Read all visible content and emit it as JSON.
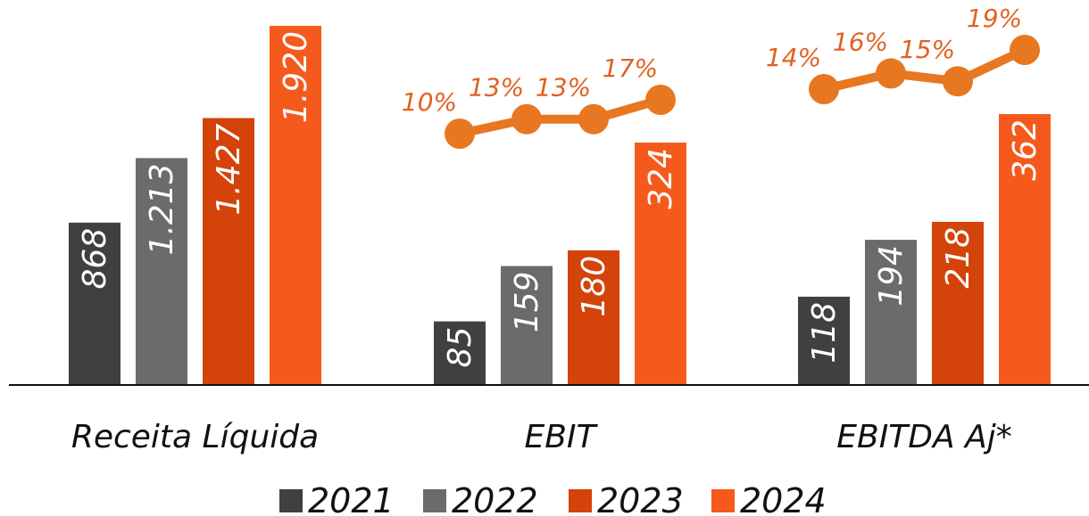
{
  "chart_data": {
    "type": "bar",
    "categories": [
      "Receita Líquida",
      "EBIT",
      "EBITDA Aj*"
    ],
    "series": [
      {
        "name": "2021",
        "color": "#404040",
        "values": [
          868,
          85,
          118
        ],
        "labels": [
          "868",
          "85",
          "118"
        ]
      },
      {
        "name": "2022",
        "color": "#6b6b6b",
        "values": [
          1213,
          159,
          194
        ],
        "labels": [
          "1.213",
          "159",
          "194"
        ]
      },
      {
        "name": "2023",
        "color": "#d4430a",
        "values": [
          1427,
          180,
          218
        ],
        "labels": [
          "1.427",
          "180",
          "218"
        ]
      },
      {
        "name": "2024",
        "color": "#f55a1c",
        "values": [
          1920,
          324,
          362
        ],
        "labels": [
          "1.920",
          "324",
          "362"
        ]
      }
    ],
    "margins": [
      {
        "category": "EBIT",
        "values": [
          10,
          13,
          13,
          17
        ],
        "labels": [
          "10%",
          "13%",
          "13%",
          "17%"
        ]
      },
      {
        "category": "EBITDA Aj*",
        "values": [
          14,
          16,
          15,
          19
        ],
        "labels": [
          "14%",
          "16%",
          "15%",
          "19%"
        ]
      }
    ],
    "line_color": "#e87722",
    "legend_placement": "bottom",
    "grid": false
  }
}
